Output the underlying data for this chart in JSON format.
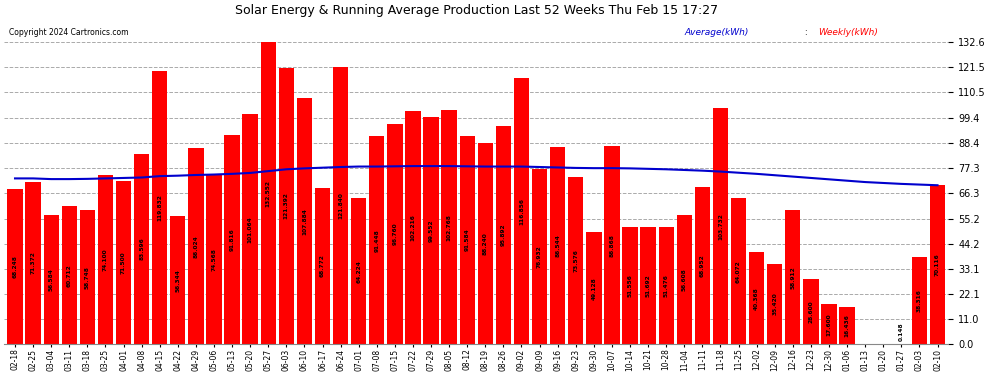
{
  "title": "Solar Energy & Running Average Production Last 52 Weeks Thu Feb 15 17:27",
  "copyright": "Copyright 2024 Cartronics.com",
  "legend_avg": "Average(kWh)",
  "legend_weekly": "Weekly(kWh)",
  "bar_color": "#ff0000",
  "avg_line_color": "#0000cd",
  "background_color": "#ffffff",
  "grid_color": "#aaaaaa",
  "ylim": [
    0,
    143
  ],
  "yticks": [
    0.0,
    11.0,
    22.1,
    33.1,
    44.2,
    55.2,
    66.3,
    77.3,
    88.4,
    99.4,
    110.5,
    121.5,
    132.6
  ],
  "categories": [
    "02-18",
    "02-25",
    "03-04",
    "03-11",
    "03-18",
    "03-25",
    "04-01",
    "04-08",
    "04-15",
    "04-22",
    "04-29",
    "05-06",
    "05-13",
    "05-20",
    "05-27",
    "06-03",
    "06-10",
    "06-17",
    "06-24",
    "07-01",
    "07-08",
    "07-15",
    "07-22",
    "07-29",
    "08-05",
    "08-12",
    "08-19",
    "08-26",
    "09-02",
    "09-09",
    "09-16",
    "09-23",
    "09-30",
    "10-07",
    "10-14",
    "10-21",
    "10-28",
    "11-04",
    "11-11",
    "11-18",
    "11-25",
    "12-02",
    "12-09",
    "12-16",
    "12-23",
    "12-30",
    "01-06",
    "01-13",
    "01-20",
    "01-27",
    "02-03",
    "02-10"
  ],
  "weekly_values": [
    68.248,
    71.372,
    56.584,
    60.712,
    58.748,
    74.1,
    71.5,
    83.596,
    119.832,
    56.344,
    86.024,
    74.568,
    91.816,
    101.064,
    132.552,
    121.392,
    107.884,
    68.772,
    121.84,
    64.224,
    91.448,
    96.76,
    102.216,
    99.552,
    102.768,
    91.584,
    88.24,
    95.892,
    116.856,
    76.932,
    86.544,
    73.576,
    49.128,
    86.868,
    51.556,
    51.692,
    51.476,
    56.608,
    68.952,
    103.732,
    64.072,
    40.368,
    35.42,
    58.912,
    28.6,
    17.6,
    16.436,
    0.0,
    0.0,
    0.148,
    38.316,
    70.116
  ],
  "avg_values": [
    72.8,
    72.8,
    72.5,
    72.5,
    72.6,
    72.8,
    73.0,
    73.2,
    73.8,
    74.0,
    74.3,
    74.5,
    74.8,
    75.2,
    76.0,
    76.8,
    77.2,
    77.5,
    77.8,
    78.0,
    78.0,
    78.1,
    78.2,
    78.2,
    78.2,
    78.1,
    78.0,
    78.0,
    78.0,
    77.8,
    77.6,
    77.4,
    77.3,
    77.3,
    77.2,
    77.0,
    76.8,
    76.5,
    76.2,
    75.8,
    75.3,
    74.8,
    74.2,
    73.6,
    73.0,
    72.4,
    71.8,
    71.2,
    70.8,
    70.4,
    70.1,
    69.8
  ]
}
